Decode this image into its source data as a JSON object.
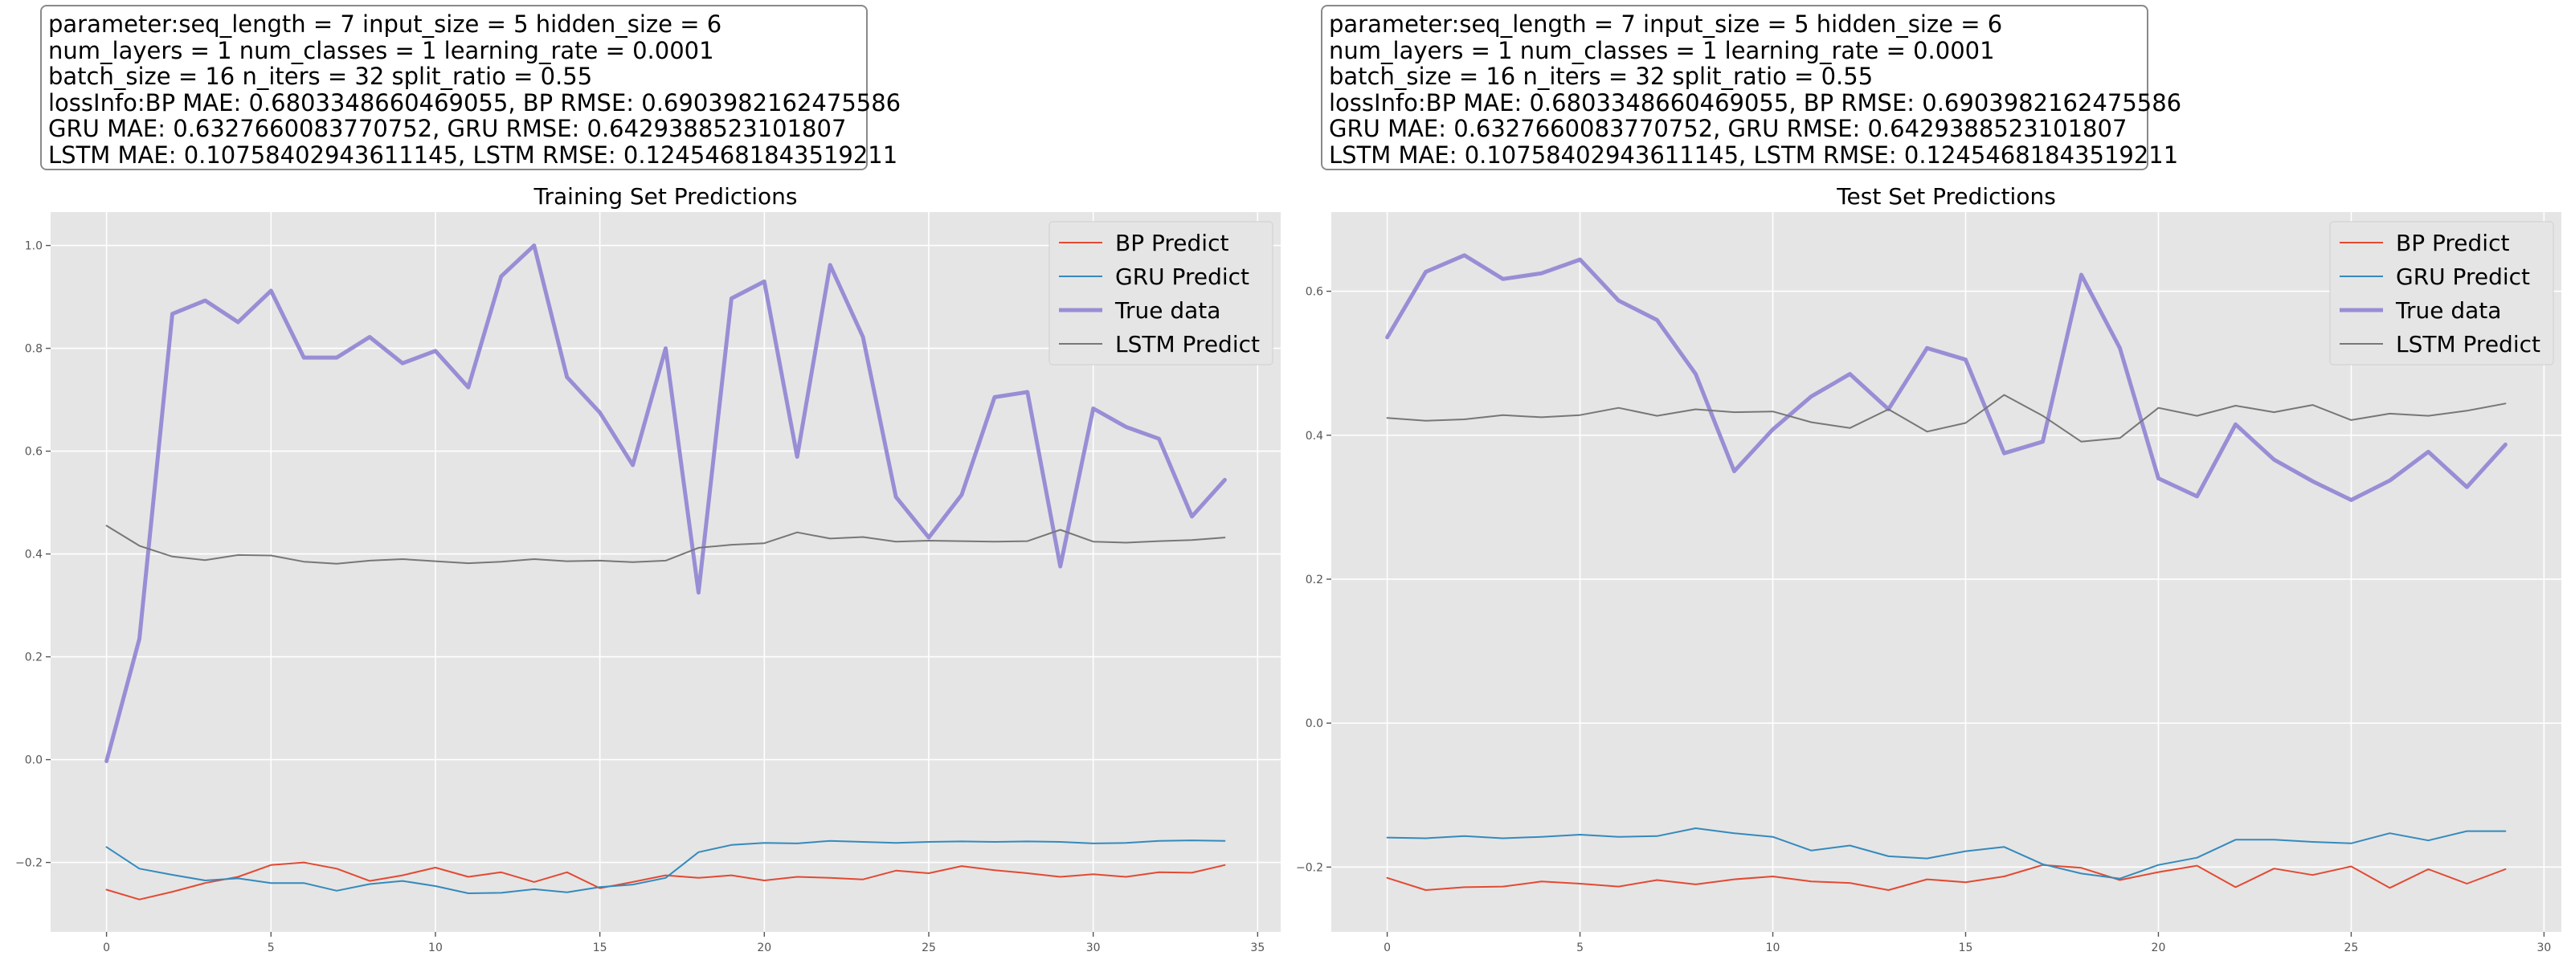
{
  "info_lines": [
    "parameter:seq_length = 7 input_size = 5 hidden_size = 6",
    "num_layers = 1 num_classes = 1 learning_rate = 0.0001",
    "batch_size = 16 n_iters = 32 split_ratio = 0.55",
    "lossInfo:BP MAE: 0.6803348660469055, BP RMSE: 0.6903982162475586",
    "GRU MAE: 0.6327660083770752, GRU RMSE: 0.6429388523101807",
    "LSTM MAE: 0.10758402943611145, LSTM RMSE: 0.12454681843519211"
  ],
  "colors": {
    "BP Predict": "#e24a33",
    "GRU Predict": "#348abd",
    "True data": "#988ed5",
    "LSTM Predict": "#777777",
    "plot_bg": "#e5e5e5",
    "grid": "#ffffff"
  },
  "chart_data": [
    {
      "type": "line",
      "title": "Training Set Predictions",
      "xlim": [
        -1.7,
        35.7
      ],
      "ylim": [
        -0.335,
        1.065
      ],
      "xticks": [
        0,
        5,
        10,
        15,
        20,
        25,
        30,
        35
      ],
      "yticks": [
        -0.2,
        0.0,
        0.2,
        0.4,
        0.6,
        0.8,
        1.0
      ],
      "ytick_labels": [
        "−0.2",
        "0.0",
        "0.2",
        "0.4",
        "0.6",
        "0.8",
        "1.0"
      ],
      "grid": true,
      "legend_position": "top-right",
      "x": [
        0,
        1,
        2,
        3,
        4,
        5,
        6,
        7,
        8,
        9,
        10,
        11,
        12,
        13,
        14,
        15,
        16,
        17,
        18,
        19,
        20,
        21,
        22,
        23,
        24,
        25,
        26,
        27,
        28,
        29,
        30,
        31,
        32,
        33,
        34
      ],
      "series": [
        {
          "name": "BP Predict",
          "values": [
            -0.253,
            -0.272,
            -0.257,
            -0.24,
            -0.228,
            -0.205,
            -0.2,
            -0.212,
            -0.236,
            -0.225,
            -0.21,
            -0.228,
            -0.219,
            -0.238,
            -0.219,
            -0.25,
            -0.238,
            -0.225,
            -0.23,
            -0.225,
            -0.235,
            -0.228,
            -0.23,
            -0.233,
            -0.216,
            -0.221,
            -0.207,
            -0.215,
            -0.221,
            -0.228,
            -0.223,
            -0.228,
            -0.219,
            -0.22,
            -0.205
          ]
        },
        {
          "name": "GRU Predict",
          "values": [
            -0.17,
            -0.212,
            -0.224,
            -0.235,
            -0.231,
            -0.24,
            -0.24,
            -0.255,
            -0.242,
            -0.236,
            -0.246,
            -0.26,
            -0.259,
            -0.252,
            -0.258,
            -0.248,
            -0.243,
            -0.23,
            -0.18,
            -0.166,
            -0.162,
            -0.163,
            -0.158,
            -0.16,
            -0.162,
            -0.16,
            -0.159,
            -0.16,
            -0.159,
            -0.16,
            -0.163,
            -0.162,
            -0.158,
            -0.157,
            -0.158
          ]
        },
        {
          "name": "True data",
          "values": [
            -0.003,
            0.235,
            0.867,
            0.893,
            0.851,
            0.912,
            0.782,
            0.782,
            0.822,
            0.771,
            0.795,
            0.724,
            0.94,
            1.0,
            0.744,
            0.675,
            0.573,
            0.8,
            0.325,
            0.897,
            0.93,
            0.589,
            0.962,
            0.822,
            0.511,
            0.432,
            0.515,
            0.705,
            0.715,
            0.376,
            0.683,
            0.647,
            0.624,
            0.473,
            0.544
          ]
        },
        {
          "name": "LSTM Predict",
          "values": [
            0.455,
            0.416,
            0.395,
            0.388,
            0.398,
            0.397,
            0.385,
            0.381,
            0.387,
            0.39,
            0.386,
            0.382,
            0.385,
            0.39,
            0.386,
            0.387,
            0.384,
            0.387,
            0.412,
            0.418,
            0.421,
            0.442,
            0.43,
            0.433,
            0.424,
            0.426,
            0.425,
            0.424,
            0.425,
            0.447,
            0.424,
            0.422,
            0.425,
            0.427,
            0.432
          ]
        }
      ]
    },
    {
      "type": "line",
      "title": "Test Set Predictions",
      "xlim": [
        -1.45,
        30.45
      ],
      "ylim": [
        -0.29,
        0.71
      ],
      "xticks": [
        0,
        5,
        10,
        15,
        20,
        25,
        30
      ],
      "yticks": [
        -0.2,
        0.0,
        0.2,
        0.4,
        0.6
      ],
      "ytick_labels": [
        "−0.2",
        "0.0",
        "0.2",
        "0.4",
        "0.6"
      ],
      "grid": true,
      "legend_position": "top-right",
      "x": [
        0,
        1,
        2,
        3,
        4,
        5,
        6,
        7,
        8,
        9,
        10,
        11,
        12,
        13,
        14,
        15,
        16,
        17,
        18,
        19,
        20,
        21,
        22,
        23,
        24,
        25,
        26,
        27,
        28,
        29
      ],
      "series": [
        {
          "name": "BP Predict",
          "values": [
            -0.215,
            -0.232,
            -0.228,
            -0.227,
            -0.22,
            -0.223,
            -0.227,
            -0.218,
            -0.224,
            -0.217,
            -0.213,
            -0.22,
            -0.222,
            -0.232,
            -0.217,
            -0.221,
            -0.213,
            -0.197,
            -0.201,
            -0.218,
            -0.207,
            -0.198,
            -0.228,
            -0.202,
            -0.211,
            -0.199,
            -0.229,
            -0.203,
            -0.223,
            -0.203
          ]
        },
        {
          "name": "GRU Predict",
          "values": [
            -0.159,
            -0.16,
            -0.157,
            -0.16,
            -0.158,
            -0.155,
            -0.158,
            -0.157,
            -0.146,
            -0.153,
            -0.158,
            -0.177,
            -0.17,
            -0.185,
            -0.188,
            -0.178,
            -0.172,
            -0.196,
            -0.209,
            -0.216,
            -0.197,
            -0.187,
            -0.162,
            -0.162,
            -0.165,
            -0.167,
            -0.153,
            -0.163,
            -0.15,
            -0.15
          ]
        },
        {
          "name": "True data",
          "values": [
            0.536,
            0.627,
            0.65,
            0.617,
            0.625,
            0.644,
            0.587,
            0.56,
            0.485,
            0.35,
            0.408,
            0.454,
            0.485,
            0.436,
            0.521,
            0.505,
            0.375,
            0.391,
            0.623,
            0.521,
            0.34,
            0.315,
            0.415,
            0.366,
            0.336,
            0.31,
            0.337,
            0.377,
            0.328,
            0.387
          ]
        },
        {
          "name": "LSTM Predict",
          "values": [
            0.424,
            0.42,
            0.422,
            0.428,
            0.425,
            0.428,
            0.438,
            0.427,
            0.436,
            0.432,
            0.433,
            0.418,
            0.41,
            0.436,
            0.405,
            0.417,
            0.456,
            0.427,
            0.391,
            0.396,
            0.438,
            0.427,
            0.441,
            0.432,
            0.442,
            0.421,
            0.43,
            0.427,
            0.434,
            0.444
          ]
        }
      ]
    }
  ]
}
